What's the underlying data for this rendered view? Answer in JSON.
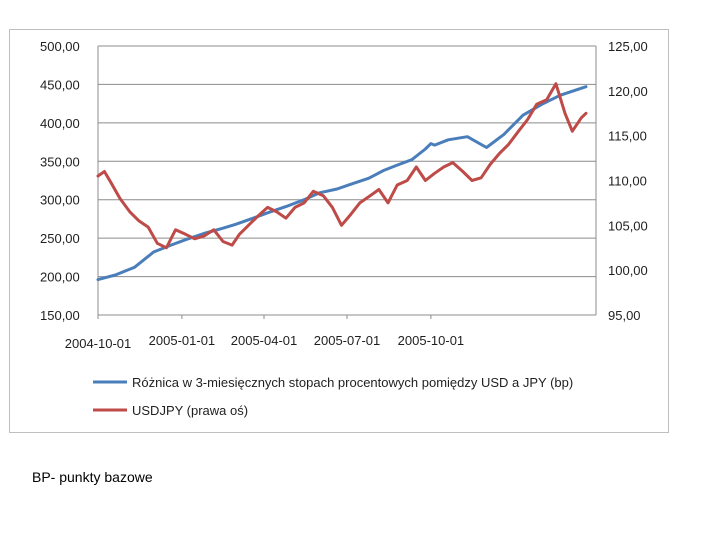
{
  "chart_data": {
    "type": "line",
    "title": "",
    "x_tick_labels": [
      "2004-10-01",
      "2005-01-01",
      "2005-04-01",
      "2005-07-01",
      "2005-10-01"
    ],
    "x_range": [
      "2004-10-01",
      "2006-03-31"
    ],
    "y_left": {
      "ylim": [
        150,
        500
      ],
      "tick_values": [
        150,
        200,
        250,
        300,
        350,
        400,
        450,
        500
      ],
      "tick_labels": [
        "150,00",
        "200,00",
        "250,00",
        "300,00",
        "350,00",
        "400,00",
        "450,00",
        "500,00"
      ]
    },
    "y_right": {
      "ylim": [
        95,
        125
      ],
      "tick_values": [
        95,
        100,
        105,
        110,
        115,
        120,
        125
      ],
      "tick_labels": [
        "95,00",
        "100,00",
        "105,00",
        "110,00",
        "115,00",
        "120,00",
        "125,00"
      ]
    },
    "grid": true,
    "legend_position": "bottom",
    "series": [
      {
        "name": "Różnica w 3-miesięcznych stopach procentowych pomiędzy USD a JPY (bp)",
        "axis": "left",
        "color": "#4a7ebb",
        "dates": [
          "2004-10-01",
          "2004-10-20",
          "2004-11-10",
          "2004-12-01",
          "2004-12-20",
          "2005-01-05",
          "2005-01-25",
          "2005-02-15",
          "2005-03-01",
          "2005-03-20",
          "2005-04-05",
          "2005-04-25",
          "2005-05-15",
          "2005-06-01",
          "2005-06-20",
          "2005-07-05",
          "2005-07-25",
          "2005-08-10",
          "2005-08-25",
          "2005-09-10",
          "2005-09-25",
          "2005-10-01",
          "2005-10-05",
          "2005-10-20",
          "2005-11-10",
          "2005-12-01",
          "2005-12-20",
          "2006-01-10",
          "2006-02-01",
          "2006-02-20",
          "2006-03-20"
        ],
        "values": [
          196,
          202,
          212,
          232,
          241,
          248,
          256,
          263,
          268,
          276,
          283,
          291,
          300,
          309,
          314,
          320,
          328,
          338,
          345,
          352,
          366,
          373,
          371,
          378,
          382,
          368,
          385,
          410,
          425,
          436,
          447
        ]
      },
      {
        "name": "USDJPY (prawa oś)",
        "axis": "right",
        "color": "#be4b48",
        "dates": [
          "2004-10-01",
          "2004-10-08",
          "2004-10-15",
          "2004-10-25",
          "2004-11-05",
          "2004-11-15",
          "2004-11-25",
          "2004-12-05",
          "2004-12-15",
          "2004-12-25",
          "2005-01-05",
          "2005-01-15",
          "2005-01-25",
          "2005-02-05",
          "2005-02-15",
          "2005-02-25",
          "2005-03-05",
          "2005-03-15",
          "2005-03-25",
          "2005-04-05",
          "2005-04-15",
          "2005-04-25",
          "2005-05-05",
          "2005-05-15",
          "2005-05-25",
          "2005-06-05",
          "2005-06-15",
          "2005-06-25",
          "2005-07-05",
          "2005-07-15",
          "2005-07-25",
          "2005-08-05",
          "2005-08-15",
          "2005-08-25",
          "2005-09-05",
          "2005-09-15",
          "2005-09-25",
          "2005-10-05",
          "2005-10-15",
          "2005-10-25",
          "2005-11-05",
          "2005-11-15",
          "2005-11-25",
          "2005-12-05",
          "2005-12-15",
          "2005-12-25",
          "2006-01-05",
          "2006-01-15",
          "2006-01-25",
          "2006-02-05",
          "2006-02-15",
          "2006-02-25",
          "2006-03-05",
          "2006-03-15",
          "2006-03-20"
        ],
        "values": [
          110.5,
          111.0,
          109.8,
          108.0,
          106.5,
          105.5,
          104.8,
          103.0,
          102.5,
          104.5,
          104.0,
          103.5,
          103.8,
          104.5,
          103.2,
          102.8,
          104.0,
          105.0,
          106.0,
          107.0,
          106.5,
          105.8,
          107.0,
          107.5,
          108.8,
          108.3,
          107.0,
          105.0,
          106.2,
          107.5,
          108.2,
          109.0,
          107.5,
          109.5,
          110.0,
          111.5,
          110.0,
          110.8,
          111.5,
          112.0,
          111.0,
          110.0,
          110.3,
          111.8,
          113.0,
          114.0,
          115.5,
          116.8,
          118.5,
          119.0,
          120.8,
          117.5,
          115.5,
          117.0,
          117.5
        ]
      }
    ]
  },
  "footnote": "BP- punkty bazowe"
}
